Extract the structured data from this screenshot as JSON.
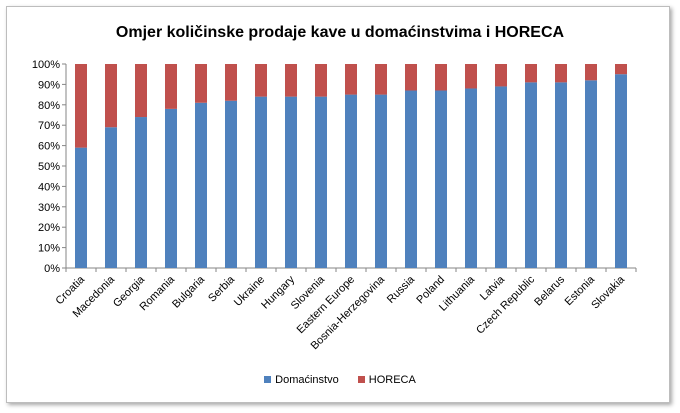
{
  "chart_data": {
    "type": "bar",
    "stacked": true,
    "percent_stacked": true,
    "title": "Omjer količinske prodaje kave u domaćinstvima i HORECA",
    "categories": [
      "Croatia",
      "Macedonia",
      "Georgia",
      "Romania",
      "Bulgaria",
      "Serbia",
      "Ukraine",
      "Hungary",
      "Slovenia",
      "Eastern Europe",
      "Bosnia-Herzegovina",
      "Russia",
      "Poland",
      "Lithuania",
      "Latvia",
      "Czech Republic",
      "Belarus",
      "Estonia",
      "Slovakia"
    ],
    "series": [
      {
        "name": "Domaćinstvo",
        "color": "#4f81bd",
        "values": [
          59,
          69,
          74,
          78,
          81,
          82,
          84,
          84,
          84,
          85,
          85,
          87,
          87,
          88,
          89,
          91,
          91,
          92,
          95
        ]
      },
      {
        "name": "HORECA",
        "color": "#c0504d",
        "values": [
          41,
          31,
          26,
          22,
          19,
          18,
          16,
          16,
          16,
          15,
          15,
          13,
          13,
          12,
          11,
          9,
          9,
          8,
          5
        ]
      }
    ],
    "yticks": [
      "0%",
      "10%",
      "20%",
      "30%",
      "40%",
      "50%",
      "60%",
      "70%",
      "80%",
      "90%",
      "100%"
    ],
    "ylim": [
      0,
      100
    ],
    "grid": false,
    "legend_position": "bottom"
  }
}
